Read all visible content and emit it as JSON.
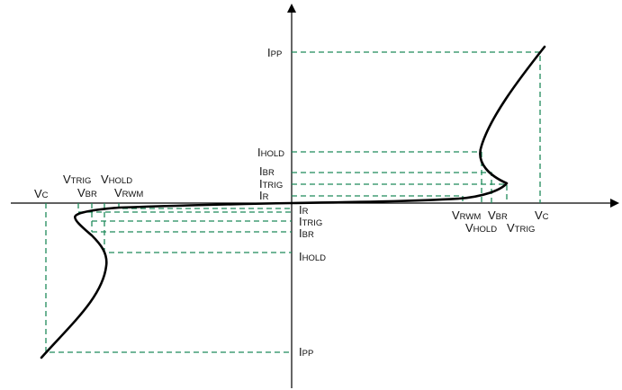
{
  "colors": {
    "guide": "#1f8a5b",
    "curve": "#000000",
    "axis": "#000000",
    "text": "#111111"
  },
  "labels": {
    "ipp_pos": {
      "main": "I",
      "sub": "PP"
    },
    "ihold_pos": {
      "main": "I",
      "sub": "HOLD"
    },
    "ibr_pos": {
      "main": "I",
      "sub": "BR"
    },
    "itrig_pos": {
      "main": "I",
      "sub": "TRIG"
    },
    "ir_pos": {
      "main": "I",
      "sub": "R"
    },
    "ir_neg": {
      "main": "I",
      "sub": "R"
    },
    "itrig_neg": {
      "main": "I",
      "sub": "TRIG"
    },
    "ibr_neg": {
      "main": "I",
      "sub": "BR"
    },
    "ihold_neg": {
      "main": "I",
      "sub": "HOLD"
    },
    "ipp_neg": {
      "main": "I",
      "sub": "PP"
    },
    "vrwm_pos": {
      "main": "V",
      "sub": "RWM"
    },
    "vbr_pos": {
      "main": "V",
      "sub": "BR"
    },
    "vc_pos": {
      "main": "V",
      "sub": "C"
    },
    "vhold_pos": {
      "main": "V",
      "sub": "HOLD"
    },
    "vtrig_pos": {
      "main": "V",
      "sub": "TRIG"
    },
    "vc_neg": {
      "main": "V",
      "sub": "C"
    },
    "vtrig_neg": {
      "main": "V",
      "sub": "TRIG"
    },
    "vhold_neg": {
      "main": "V",
      "sub": "HOLD"
    },
    "vbr_neg": {
      "main": "V",
      "sub": "BR"
    },
    "vrwm_neg": {
      "main": "V",
      "sub": "RWM"
    }
  }
}
